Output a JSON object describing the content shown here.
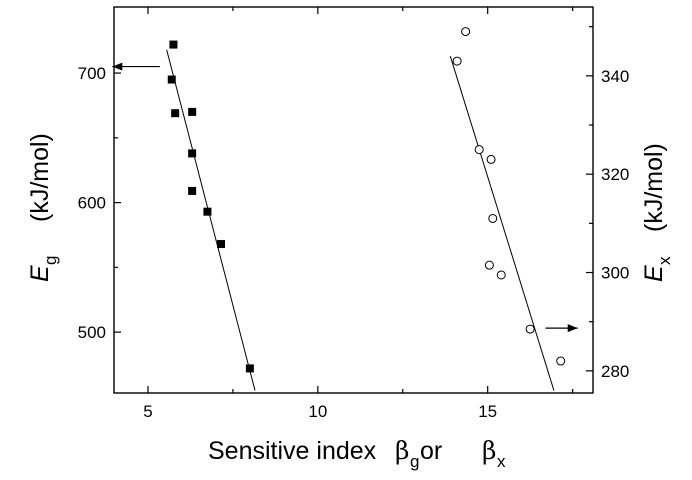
{
  "chart_data": [
    {
      "type": "scatter",
      "xlabel_text": "Sensitive index ",
      "xlabel_beta": "β",
      "xlabel_sub_g": "g",
      "xlabel_or": " or ",
      "xlabel_sub_x": "x",
      "x_ticks": [
        5,
        10,
        15
      ],
      "xlim": [
        4,
        18.1
      ],
      "left_axis": {
        "label_symbol": "E",
        "label_sub": "g",
        "label_unit": "(kJ/mol)",
        "ticks": [
          500,
          600,
          700
        ],
        "ylim": [
          453,
          751
        ]
      },
      "right_axis": {
        "label_symbol": "E",
        "label_sub": "x",
        "label_unit": "(kJ/mol)",
        "ticks": [
          280,
          300,
          320,
          340
        ],
        "ylim": [
          275.5,
          354
        ]
      },
      "series": [
        {
          "axis": "left",
          "marker": "filled-square",
          "points": [
            {
              "x": 5.75,
              "y": 722
            },
            {
              "x": 5.7,
              "y": 695
            },
            {
              "x": 5.8,
              "y": 669
            },
            {
              "x": 6.3,
              "y": 670
            },
            {
              "x": 6.3,
              "y": 638
            },
            {
              "x": 6.3,
              "y": 609
            },
            {
              "x": 6.75,
              "y": 593
            },
            {
              "x": 7.15,
              "y": 568
            },
            {
              "x": 8.0,
              "y": 472
            }
          ],
          "fit_line": [
            {
              "x": 5.55,
              "y": 718
            },
            {
              "x": 8.15,
              "y": 455
            }
          ]
        },
        {
          "axis": "right",
          "marker": "open-circle",
          "points": [
            {
              "x": 14.35,
              "y": 349
            },
            {
              "x": 14.1,
              "y": 343
            },
            {
              "x": 14.75,
              "y": 325
            },
            {
              "x": 15.1,
              "y": 323
            },
            {
              "x": 15.15,
              "y": 311
            },
            {
              "x": 15.05,
              "y": 301.5
            },
            {
              "x": 15.4,
              "y": 299.5
            },
            {
              "x": 16.25,
              "y": 288.5
            },
            {
              "x": 17.15,
              "y": 282
            }
          ],
          "fit_line": [
            {
              "x": 13.9,
              "y": 344
            },
            {
              "x": 16.95,
              "y": 276
            }
          ]
        }
      ],
      "annotations": [
        {
          "type": "arrow",
          "direction": "left",
          "axis": "left",
          "x_from": 5.35,
          "x_to": 3.95,
          "y": 705
        },
        {
          "type": "arrow",
          "direction": "right",
          "axis": "right",
          "x_from": 16.7,
          "x_to": 17.65,
          "y": 288.7
        }
      ],
      "grid": false,
      "legend": "none"
    }
  ]
}
